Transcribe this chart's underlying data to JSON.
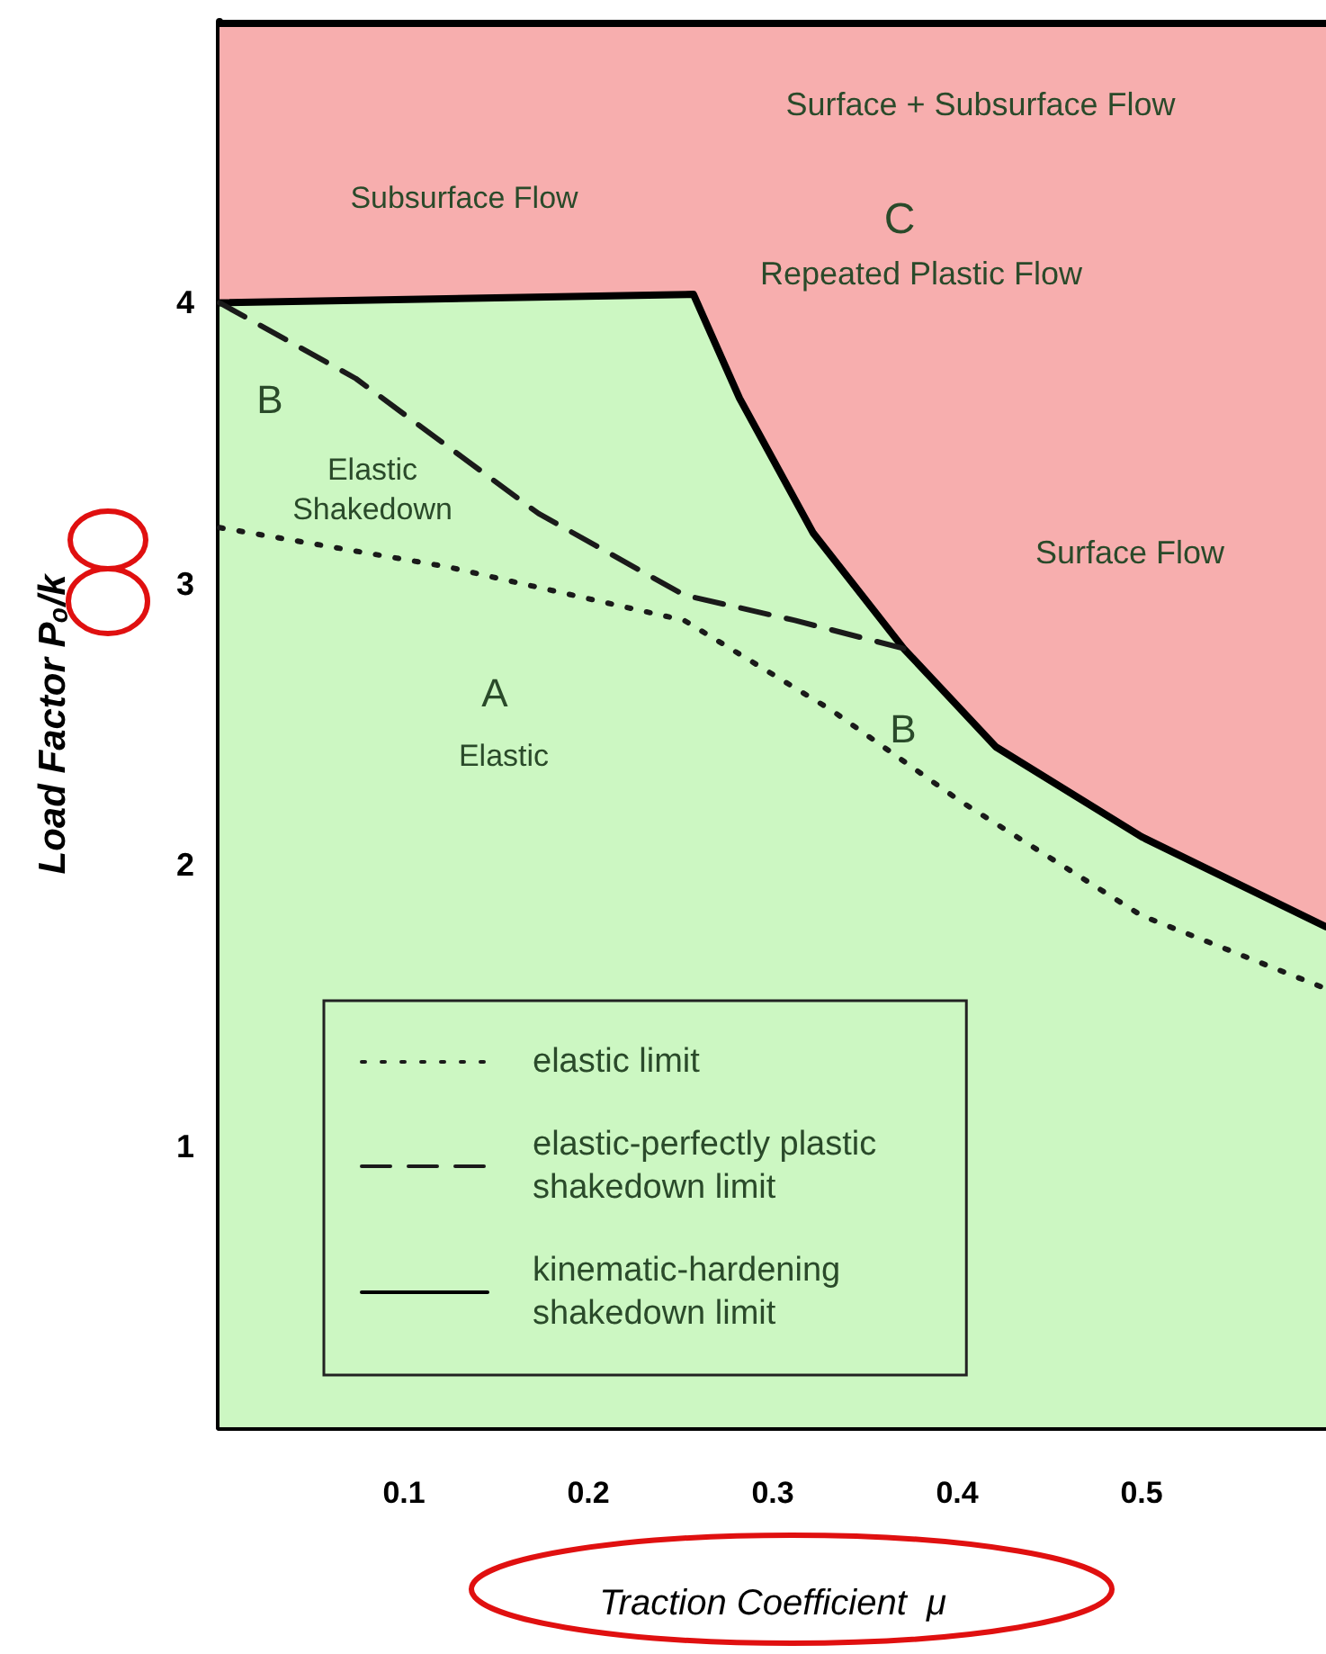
{
  "chart_data": {
    "type": "line",
    "xlabel": "Traction Coefficient  μ",
    "ylabel": "Load Factor Pₒ/k",
    "xlim": [
      0,
      0.6
    ],
    "ylim": [
      0,
      5
    ],
    "xticks": [
      0.1,
      0.2,
      0.3,
      0.4,
      0.5
    ],
    "yticks": [
      1,
      2,
      3,
      4
    ],
    "legend": "bottom left",
    "marker": "none",
    "bands": [
      {
        "axis": "y",
        "from": 1.75,
        "to": 5,
        "color": "#f7aeae"
      }
    ],
    "series": [
      {
        "name": "elastic limit",
        "color": "#1a1a1a",
        "line_style": "dotted",
        "x": [
          0,
          0.124,
          0.252,
          0.332,
          0.401,
          0.5,
          0.6
        ],
        "values": [
          3.2,
          3.06,
          2.87,
          2.55,
          2.23,
          1.82,
          1.56
        ]
      },
      {
        "name": "elastic-perfectly plastic\nshakedown limit",
        "color": "#1a1a1a",
        "line_style": "dashed",
        "x": [
          0,
          0.074,
          0.173,
          0.252,
          0.312,
          0.371
        ],
        "values": [
          4.0,
          3.73,
          3.25,
          2.96,
          2.87,
          2.77
        ]
      },
      {
        "name": "kinematic-hardening\nshakedown limit",
        "type": "area",
        "color": "#000000",
        "line_style": "solid",
        "x": [
          0,
          0.257,
          0.282,
          0.322,
          0.371,
          0.421,
          0.5,
          0.6
        ],
        "values": [
          4.0,
          4.03,
          3.66,
          3.18,
          2.77,
          2.42,
          2.1,
          1.78
        ]
      }
    ],
    "annotations": [
      "Surface + Subsurface Flow",
      "Subsurface Flow",
      "C",
      "Repeated Plastic Flow",
      "Surface Flow",
      "B",
      "Elastic\nShakedown",
      "A",
      "Elastic",
      "B"
    ]
  }
}
